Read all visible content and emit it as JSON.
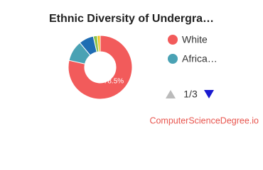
{
  "chart_data": {
    "type": "donut",
    "title": "Ethnic Diversity of Undergra…",
    "categories": [
      "White",
      "Africa…",
      null,
      null,
      null
    ],
    "values": [
      78.5,
      10.5,
      7.5,
      2,
      1.5
    ],
    "value_labels": [
      "78.5%",
      null,
      null,
      null,
      null
    ],
    "colors": [
      "#f25b5b",
      "#4aa2b4",
      "#1f6db3",
      "#8cc34c",
      "#f2c21a"
    ],
    "legend_page": "1/3",
    "source": "ComputerScienceDegree.io"
  }
}
